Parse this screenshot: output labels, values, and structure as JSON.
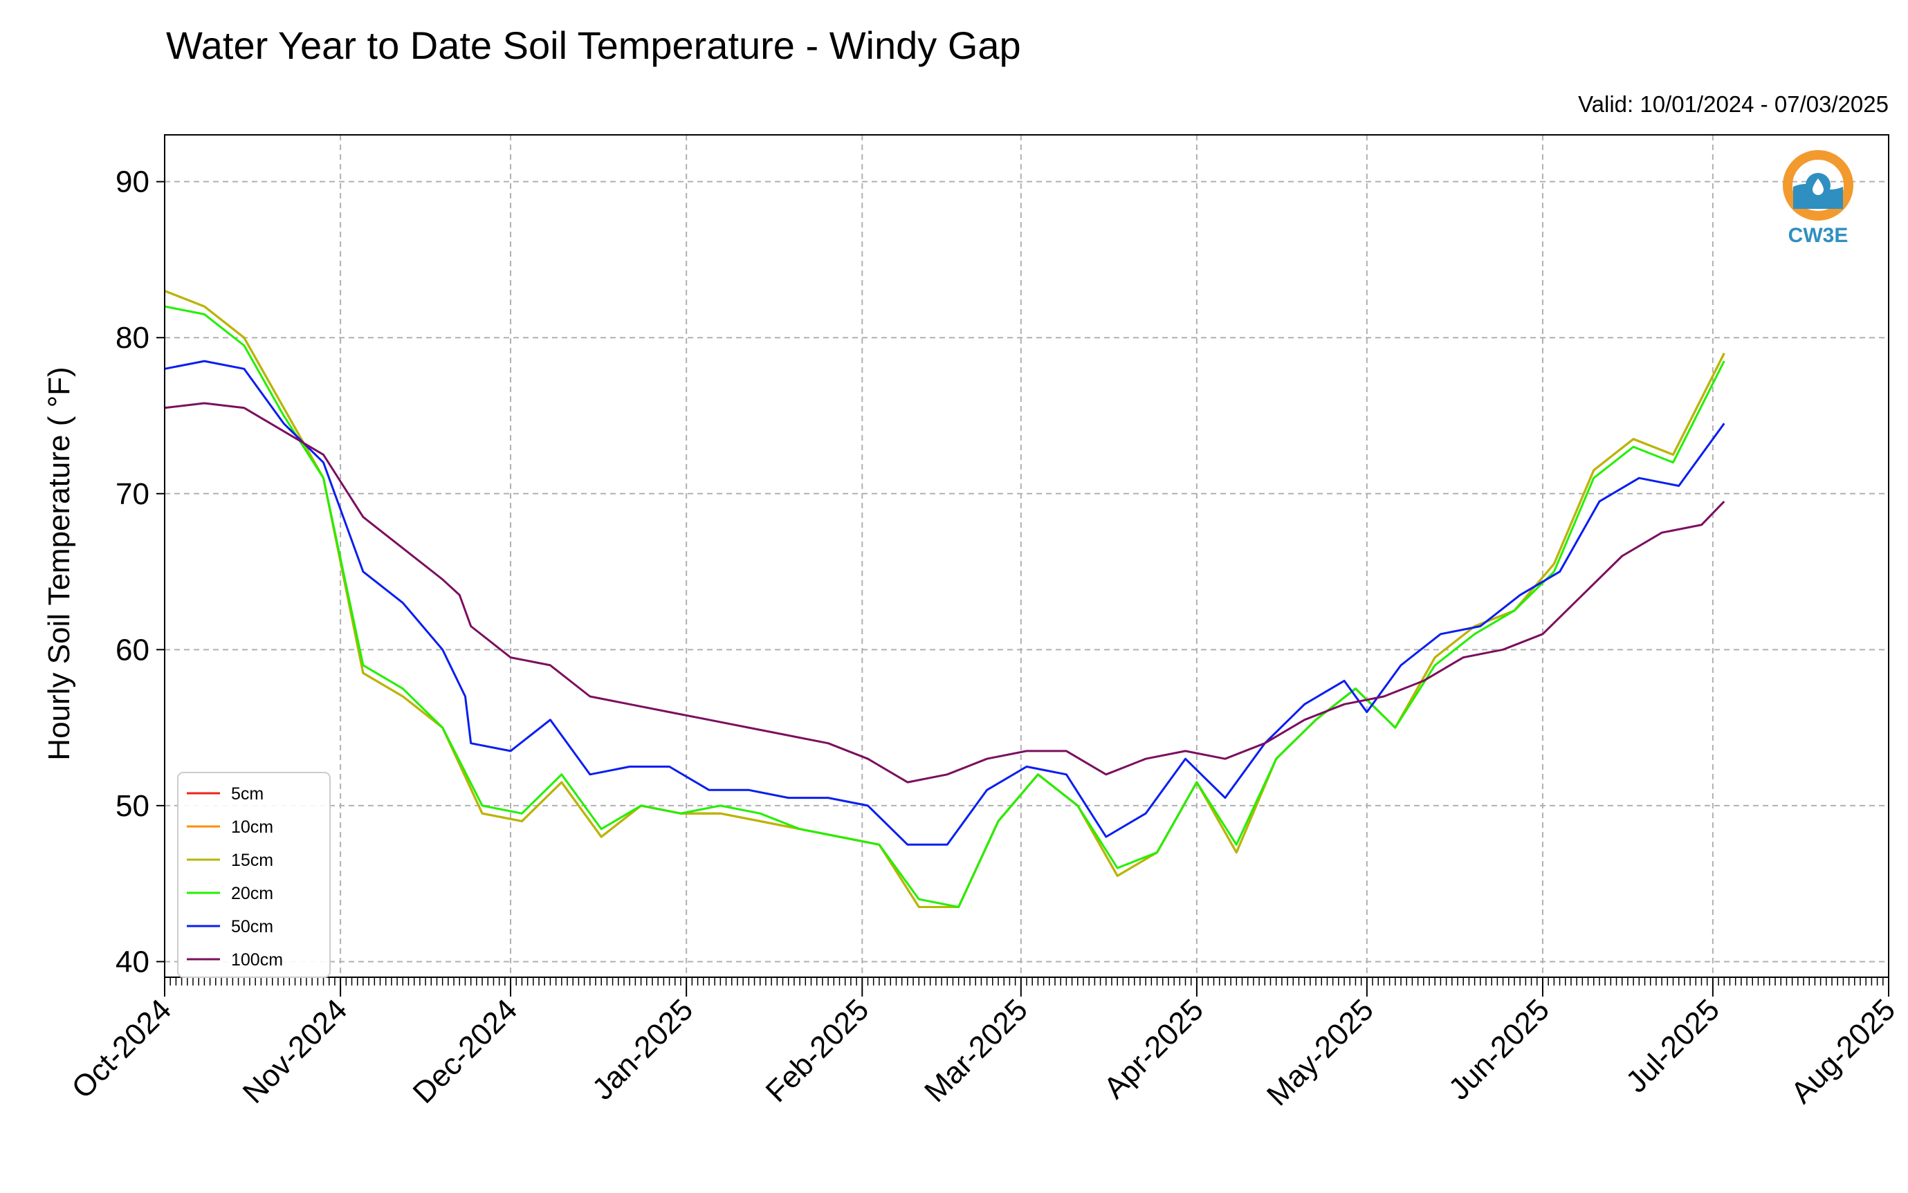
{
  "chart_data": {
    "type": "line",
    "title": "Water Year to Date Soil Temperature - Windy Gap",
    "subtitle": "Valid: 10/01/2024 - 07/03/2025",
    "ylabel": "Hourly Soil Temperature ( °F)",
    "xlabel": "",
    "xlim": [
      "2024-10-01",
      "2025-08-01"
    ],
    "ylim": [
      39,
      93
    ],
    "yticks": [
      40,
      50,
      60,
      70,
      80,
      90
    ],
    "xticks": [
      {
        "date": "2024-10-01",
        "label": "Oct-2024"
      },
      {
        "date": "2024-11-01",
        "label": "Nov-2024"
      },
      {
        "date": "2024-12-01",
        "label": "Dec-2024"
      },
      {
        "date": "2025-01-01",
        "label": "Jan-2025"
      },
      {
        "date": "2025-02-01",
        "label": "Feb-2025"
      },
      {
        "date": "2025-03-01",
        "label": "Mar-2025"
      },
      {
        "date": "2025-04-01",
        "label": "Apr-2025"
      },
      {
        "date": "2025-05-01",
        "label": "May-2025"
      },
      {
        "date": "2025-06-01",
        "label": "Jun-2025"
      },
      {
        "date": "2025-07-01",
        "label": "Jul-2025"
      },
      {
        "date": "2025-08-01",
        "label": "Aug-2025"
      }
    ],
    "grid": true,
    "legend_position": "lower-left",
    "series": [
      {
        "name": "5cm",
        "color": "#e8241a",
        "x": [
          "2024-10-01",
          "2024-10-08",
          "2024-10-15",
          "2024-10-22",
          "2024-10-29",
          "2024-11-05",
          "2024-11-12",
          "2024-11-19",
          "2024-11-26",
          "2024-12-03",
          "2024-12-10",
          "2024-12-17",
          "2024-12-24",
          "2024-12-31",
          "2025-01-07",
          "2025-01-14",
          "2025-01-21",
          "2025-01-28",
          "2025-02-04",
          "2025-02-11",
          "2025-02-18",
          "2025-02-25",
          "2025-03-04",
          "2025-03-11",
          "2025-03-18",
          "2025-03-25",
          "2025-04-01",
          "2025-04-08",
          "2025-04-15",
          "2025-04-22",
          "2025-04-29",
          "2025-05-06",
          "2025-05-13",
          "2025-05-20",
          "2025-05-27",
          "2025-06-03",
          "2025-06-10",
          "2025-06-17",
          "2025-06-24",
          "2025-07-03"
        ],
        "y": [
          83.0,
          82.0,
          80.0,
          75.5,
          71.0,
          58.5,
          57.0,
          55.0,
          49.5,
          49.0,
          51.5,
          48.0,
          50.0,
          49.5,
          49.5,
          49.0,
          48.5,
          48.0,
          47.5,
          43.5,
          43.5,
          49.0,
          52.0,
          50.0,
          45.5,
          47.0,
          51.5,
          47.0,
          53.0,
          55.5,
          57.5,
          55.0,
          59.5,
          61.5,
          62.5,
          65.5,
          71.5,
          73.5,
          72.5,
          79.0
        ]
      },
      {
        "name": "10cm",
        "color": "#ff8c00",
        "x": [
          "2024-10-01",
          "2024-10-08",
          "2024-10-15",
          "2024-10-22",
          "2024-10-29",
          "2024-11-05",
          "2024-11-12",
          "2024-11-19",
          "2024-11-26",
          "2024-12-03",
          "2024-12-10",
          "2024-12-17",
          "2024-12-24",
          "2024-12-31",
          "2025-01-07",
          "2025-01-14",
          "2025-01-21",
          "2025-01-28",
          "2025-02-04",
          "2025-02-11",
          "2025-02-18",
          "2025-02-25",
          "2025-03-04",
          "2025-03-11",
          "2025-03-18",
          "2025-03-25",
          "2025-04-01",
          "2025-04-08",
          "2025-04-15",
          "2025-04-22",
          "2025-04-29",
          "2025-05-06",
          "2025-05-13",
          "2025-05-20",
          "2025-05-27",
          "2025-06-03",
          "2025-06-10",
          "2025-06-17",
          "2025-06-24",
          "2025-07-03"
        ],
        "y": [
          83.0,
          82.0,
          80.0,
          75.5,
          71.0,
          58.5,
          57.0,
          55.0,
          49.5,
          49.0,
          51.5,
          48.0,
          50.0,
          49.5,
          49.5,
          49.0,
          48.5,
          48.0,
          47.5,
          43.5,
          43.5,
          49.0,
          52.0,
          50.0,
          45.5,
          47.0,
          51.5,
          47.0,
          53.0,
          55.5,
          57.5,
          55.0,
          59.5,
          61.5,
          62.5,
          65.5,
          71.5,
          73.5,
          72.5,
          79.0
        ]
      },
      {
        "name": "15cm",
        "color": "#b5b800",
        "x": [
          "2024-10-01",
          "2024-10-08",
          "2024-10-15",
          "2024-10-22",
          "2024-10-29",
          "2024-11-05",
          "2024-11-12",
          "2024-11-19",
          "2024-11-26",
          "2024-12-03",
          "2024-12-10",
          "2024-12-17",
          "2024-12-24",
          "2024-12-31",
          "2025-01-07",
          "2025-01-14",
          "2025-01-21",
          "2025-01-28",
          "2025-02-04",
          "2025-02-11",
          "2025-02-18",
          "2025-02-25",
          "2025-03-04",
          "2025-03-11",
          "2025-03-18",
          "2025-03-25",
          "2025-04-01",
          "2025-04-08",
          "2025-04-15",
          "2025-04-22",
          "2025-04-29",
          "2025-05-06",
          "2025-05-13",
          "2025-05-20",
          "2025-05-27",
          "2025-06-03",
          "2025-06-10",
          "2025-06-17",
          "2025-06-24",
          "2025-07-03"
        ],
        "y": [
          83.0,
          82.0,
          80.0,
          75.5,
          71.0,
          58.5,
          57.0,
          55.0,
          49.5,
          49.0,
          51.5,
          48.0,
          50.0,
          49.5,
          49.5,
          49.0,
          48.5,
          48.0,
          47.5,
          43.5,
          43.5,
          49.0,
          52.0,
          50.0,
          45.5,
          47.0,
          51.5,
          47.0,
          53.0,
          55.5,
          57.5,
          55.0,
          59.5,
          61.5,
          62.5,
          65.5,
          71.5,
          73.5,
          72.5,
          79.0
        ]
      },
      {
        "name": "20cm",
        "color": "#22f000",
        "x": [
          "2024-10-01",
          "2024-10-08",
          "2024-10-15",
          "2024-10-22",
          "2024-10-29",
          "2024-11-05",
          "2024-11-12",
          "2024-11-19",
          "2024-11-26",
          "2024-12-03",
          "2024-12-10",
          "2024-12-17",
          "2024-12-24",
          "2024-12-31",
          "2025-01-07",
          "2025-01-14",
          "2025-01-21",
          "2025-01-28",
          "2025-02-04",
          "2025-02-11",
          "2025-02-18",
          "2025-02-25",
          "2025-03-04",
          "2025-03-11",
          "2025-03-18",
          "2025-03-25",
          "2025-04-01",
          "2025-04-08",
          "2025-04-15",
          "2025-04-22",
          "2025-04-29",
          "2025-05-06",
          "2025-05-13",
          "2025-05-20",
          "2025-05-27",
          "2025-06-03",
          "2025-06-10",
          "2025-06-17",
          "2025-06-24",
          "2025-07-03"
        ],
        "y": [
          82.0,
          81.5,
          79.5,
          75.0,
          71.0,
          59.0,
          57.5,
          55.0,
          50.0,
          49.5,
          52.0,
          48.5,
          50.0,
          49.5,
          50.0,
          49.5,
          48.5,
          48.0,
          47.5,
          44.0,
          43.5,
          49.0,
          52.0,
          50.0,
          46.0,
          47.0,
          51.5,
          47.5,
          53.0,
          55.5,
          57.5,
          55.0,
          59.0,
          61.0,
          62.5,
          65.0,
          71.0,
          73.0,
          72.0,
          78.5
        ]
      },
      {
        "name": "50cm",
        "color": "#0a1ef0",
        "x": [
          "2024-10-01",
          "2024-10-08",
          "2024-10-15",
          "2024-10-22",
          "2024-10-29",
          "2024-11-05",
          "2024-11-12",
          "2024-11-19",
          "2024-11-23",
          "2024-11-24",
          "2024-12-01",
          "2024-12-08",
          "2024-12-15",
          "2024-12-22",
          "2024-12-29",
          "2025-01-05",
          "2025-01-12",
          "2025-01-19",
          "2025-01-26",
          "2025-02-02",
          "2025-02-09",
          "2025-02-16",
          "2025-02-23",
          "2025-03-02",
          "2025-03-09",
          "2025-03-16",
          "2025-03-23",
          "2025-03-30",
          "2025-04-06",
          "2025-04-13",
          "2025-04-20",
          "2025-04-27",
          "2025-05-01",
          "2025-05-07",
          "2025-05-14",
          "2025-05-21",
          "2025-05-28",
          "2025-06-04",
          "2025-06-11",
          "2025-06-18",
          "2025-06-25",
          "2025-07-03"
        ],
        "y": [
          78.0,
          78.5,
          78.0,
          74.5,
          72.0,
          65.0,
          63.0,
          60.0,
          57.0,
          54.0,
          53.5,
          55.5,
          52.0,
          52.5,
          52.5,
          51.0,
          51.0,
          50.5,
          50.5,
          50.0,
          47.5,
          47.5,
          51.0,
          52.5,
          52.0,
          48.0,
          49.5,
          53.0,
          50.5,
          54.0,
          56.5,
          58.0,
          56.0,
          59.0,
          61.0,
          61.5,
          63.5,
          65.0,
          69.5,
          71.0,
          70.5,
          74.5
        ]
      },
      {
        "name": "100cm",
        "color": "#7b0f5e",
        "x": [
          "2024-10-01",
          "2024-10-08",
          "2024-10-15",
          "2024-10-22",
          "2024-10-29",
          "2024-11-05",
          "2024-11-12",
          "2024-11-19",
          "2024-11-22",
          "2024-11-24",
          "2024-12-01",
          "2024-12-08",
          "2024-12-15",
          "2024-12-22",
          "2024-12-29",
          "2025-01-05",
          "2025-01-12",
          "2025-01-19",
          "2025-01-26",
          "2025-02-02",
          "2025-02-09",
          "2025-02-16",
          "2025-02-23",
          "2025-03-02",
          "2025-03-09",
          "2025-03-16",
          "2025-03-23",
          "2025-03-30",
          "2025-04-06",
          "2025-04-13",
          "2025-04-20",
          "2025-04-27",
          "2025-05-04",
          "2025-05-11",
          "2025-05-18",
          "2025-05-25",
          "2025-06-01",
          "2025-06-08",
          "2025-06-15",
          "2025-06-22",
          "2025-06-29",
          "2025-07-03"
        ],
        "y": [
          75.5,
          75.8,
          75.5,
          74.0,
          72.5,
          68.5,
          66.5,
          64.5,
          63.5,
          61.5,
          59.5,
          59.0,
          57.0,
          56.5,
          56.0,
          55.5,
          55.0,
          54.5,
          54.0,
          53.0,
          51.5,
          52.0,
          53.0,
          53.5,
          53.5,
          52.0,
          53.0,
          53.5,
          53.0,
          54.0,
          55.5,
          56.5,
          57.0,
          58.0,
          59.5,
          60.0,
          61.0,
          63.5,
          66.0,
          67.5,
          68.0,
          69.5
        ]
      }
    ]
  },
  "logo": {
    "text": "CW3E",
    "ring_color": "#f29a2e",
    "wave_color": "#2f8fc0"
  }
}
